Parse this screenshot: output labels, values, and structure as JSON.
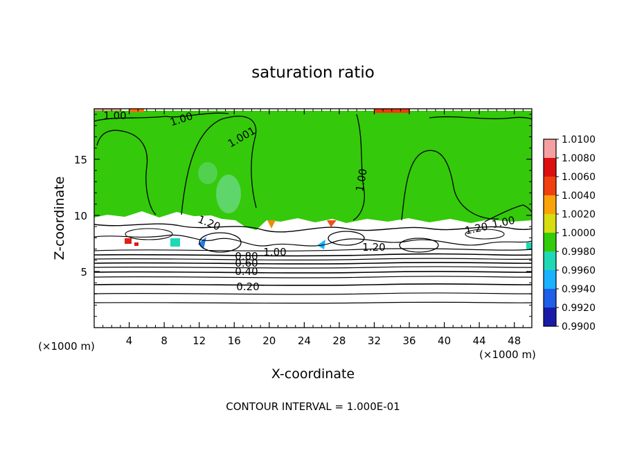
{
  "chart_data": {
    "type": "heatmap",
    "title": "saturation ratio",
    "xlabel": "X-coordinate",
    "ylabel": "Z-coordinate",
    "x_unit_left": "(×1000 m)",
    "x_unit_right": "(×1000 m)",
    "xlim": [
      0,
      50
    ],
    "ylim": [
      0,
      19.5
    ],
    "xticks": [
      4,
      8,
      12,
      16,
      20,
      24,
      28,
      32,
      36,
      40,
      44,
      48
    ],
    "xtick_labels": [
      "4",
      "8",
      "12",
      "16",
      "20",
      "24",
      "28",
      "32",
      "36",
      "40",
      "44",
      "48"
    ],
    "yticks": [
      5,
      10,
      15
    ],
    "ytick_labels": [
      "5",
      "10",
      "15"
    ],
    "colorbar": {
      "levels": [
        0.99,
        0.992,
        0.994,
        0.996,
        0.998,
        1.0,
        1.002,
        1.004,
        1.006,
        1.008,
        1.01
      ],
      "labels": [
        "0.9900",
        "0.9920",
        "0.9940",
        "0.9960",
        "0.9980",
        "1.0000",
        "1.0020",
        "1.0040",
        "1.0060",
        "1.0080",
        "1.0100"
      ],
      "colors": [
        "#6a1b9a",
        "#1a1aa8",
        "#1f5ee8",
        "#1ab2ff",
        "#1fd8b6",
        "#33cc0a",
        "#d6dd10",
        "#f9a30a",
        "#f04010",
        "#dd1010",
        "#f5a0a0"
      ]
    },
    "contour_labels": [
      "1.00",
      "1.00",
      "1.001",
      "1.00",
      "1.20",
      "1.00",
      "1.20",
      "1.20",
      "1.00",
      "0.80",
      "0.60",
      "0.40",
      "0.20"
    ],
    "contour_interval_text": "CONTOUR INTERVAL = 1.000E-01",
    "field_regions": {
      "saturated_layer_z": [
        10,
        19.5
      ],
      "subsaturated_layer_z": [
        0,
        10
      ]
    }
  }
}
